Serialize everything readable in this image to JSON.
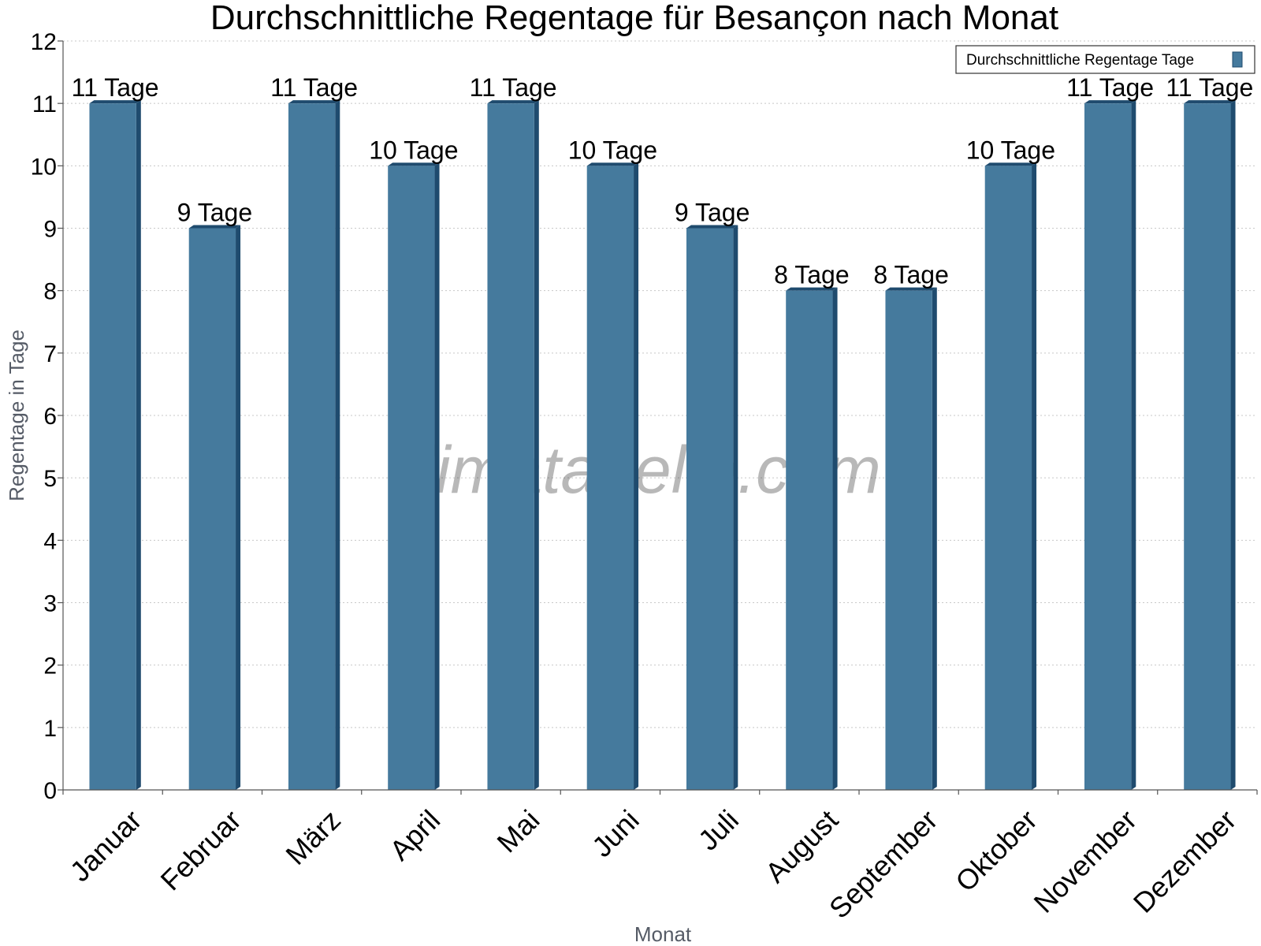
{
  "chart_data": {
    "type": "bar",
    "title": "Durchschnittliche Regentage für Besançon nach Monat",
    "xlabel": "Monat",
    "ylabel": "Regentage in Tage",
    "categories": [
      "Januar",
      "Februar",
      "März",
      "April",
      "Mai",
      "Juni",
      "Juli",
      "August",
      "September",
      "Oktober",
      "November",
      "Dezember"
    ],
    "series": [
      {
        "name": "Durchschnittliche Regentage Tage",
        "values": [
          11,
          9,
          11,
          10,
          11,
          10,
          9,
          8,
          8,
          10,
          11,
          11
        ],
        "labels": [
          "11 Tage",
          "9 Tage",
          "11 Tage",
          "10 Tage",
          "11 Tage",
          "10 Tage",
          "9 Tage",
          "8 Tage",
          "8 Tage",
          "10 Tage",
          "11 Tage",
          "11 Tage"
        ]
      }
    ],
    "ylim": [
      0,
      12
    ],
    "yticks": [
      "0",
      "1",
      "2",
      "3",
      "4",
      "5",
      "6",
      "7",
      "8",
      "9",
      "10",
      "11",
      "12"
    ],
    "grid": true,
    "legend_position": "top-right",
    "colors": {
      "bar": "#457a9d",
      "bar_side": "#1f4b6e",
      "grid": "#c8c8c8"
    },
    "watermark": "klimatabelle.com"
  }
}
